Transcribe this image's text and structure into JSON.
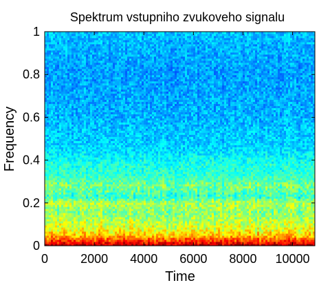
{
  "chart_data": {
    "type": "heatmap",
    "title": "Spektrum vstupniho zvukoveho signalu",
    "xlabel": "Time",
    "ylabel": "Frequency",
    "xlim": [
      0,
      10900
    ],
    "ylim": [
      0,
      1
    ],
    "x_ticks": [
      0,
      2000,
      4000,
      6000,
      8000,
      10000
    ],
    "x_tick_labels": [
      "0",
      "2000",
      "4000",
      "6000",
      "8000",
      "10000"
    ],
    "y_ticks": [
      0,
      0.2,
      0.4,
      0.6,
      0.8,
      1
    ],
    "y_tick_labels": [
      "0",
      "0.2",
      "0.4",
      "0.6",
      "0.8",
      "1"
    ],
    "colormap": "jet",
    "grid": false,
    "frequency_profile": [
      {
        "frequency": 0.0,
        "level": 0.97
      },
      {
        "frequency": 0.01,
        "level": 0.9
      },
      {
        "frequency": 0.03,
        "level": 0.78
      },
      {
        "frequency": 0.05,
        "level": 0.68
      },
      {
        "frequency": 0.08,
        "level": 0.6
      },
      {
        "frequency": 0.12,
        "level": 0.55
      },
      {
        "frequency": 0.16,
        "level": 0.5
      },
      {
        "frequency": 0.2,
        "level": 0.55
      },
      {
        "frequency": 0.23,
        "level": 0.42
      },
      {
        "frequency": 0.28,
        "level": 0.5
      },
      {
        "frequency": 0.33,
        "level": 0.42
      },
      {
        "frequency": 0.38,
        "level": 0.4
      },
      {
        "frequency": 0.45,
        "level": 0.34
      },
      {
        "frequency": 0.6,
        "level": 0.3
      },
      {
        "frequency": 0.8,
        "level": 0.28
      },
      {
        "frequency": 0.95,
        "level": 0.3
      },
      {
        "frequency": 1.0,
        "level": 0.32
      }
    ]
  }
}
